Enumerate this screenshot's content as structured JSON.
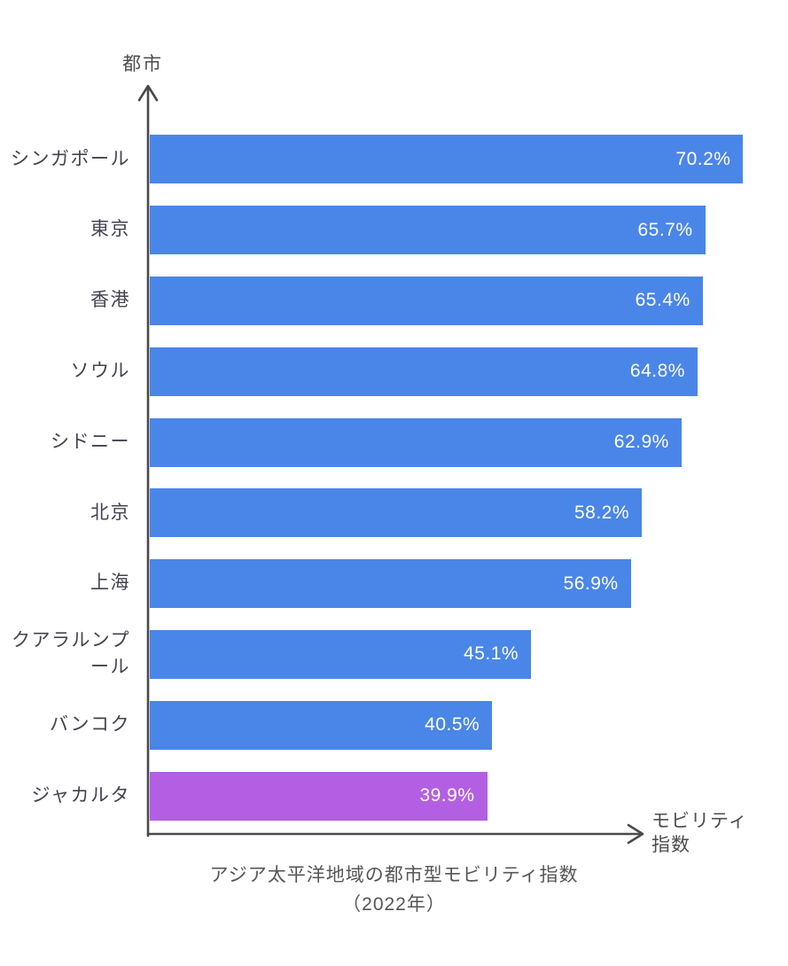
{
  "chart_data": {
    "type": "bar",
    "orientation": "horizontal",
    "title": "アジア太平洋地域の都市型モビリティ指数",
    "subtitle": "（2022年）",
    "xlabel": "モビリティ指数",
    "ylabel": "都市",
    "categories": [
      "シンガポール",
      "東京",
      "香港",
      "ソウル",
      "シドニー",
      "北京",
      "上海",
      "クアラルンプール",
      "バンコク",
      "ジャカルタ"
    ],
    "values": [
      70.2,
      65.7,
      65.4,
      64.8,
      62.9,
      58.2,
      56.9,
      45.1,
      40.5,
      39.9
    ],
    "value_labels": [
      "70.2%",
      "65.7%",
      "65.4%",
      "64.8%",
      "62.9%",
      "58.2%",
      "56.9%",
      "45.1%",
      "40.5%",
      "39.9%"
    ],
    "xlim": [
      0,
      75.5
    ],
    "grid": false,
    "legend": false,
    "colors": {
      "bar_default": "#4a86e8",
      "bar_highlight": "#b35fe3",
      "axis": "#4a4a4a",
      "category_label": "#454251",
      "value_label": "#ffffff",
      "title": "#565656"
    },
    "highlight_index": 9
  }
}
